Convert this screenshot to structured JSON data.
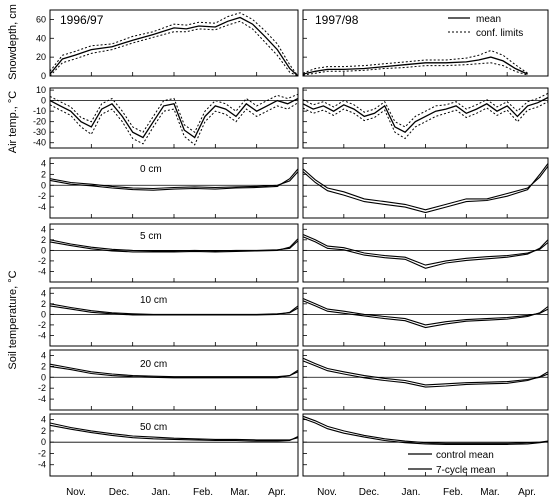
{
  "figure": {
    "season_labels": [
      "1996/97",
      "1997/98"
    ],
    "ylabels": {
      "snow": "Snowdepth, cm",
      "air": "Air temp., °C",
      "soil": "Soil temperature, °C"
    },
    "month_labels": [
      "Nov.",
      "Dec.",
      "Jan.",
      "Feb.",
      "Mar.",
      "Apr."
    ],
    "depth_labels": [
      "0 cm",
      "5 cm",
      "10 cm",
      "20 cm",
      "50 cm"
    ],
    "legend_top": [
      "mean",
      "conf. limits"
    ],
    "legend_bottom": [
      "control mean",
      "7-cycle mean"
    ]
  },
  "chart_data": [
    {
      "type": "line",
      "panel": "snow-depth",
      "ylabel": "Snowdepth, cm",
      "ylim": [
        0,
        70
      ],
      "yticks": [
        0,
        20,
        40,
        60
      ],
      "x_months": [
        "Nov.",
        "Dec.",
        "Jan.",
        "Feb.",
        "Mar.",
        "Apr."
      ],
      "seasons": [
        {
          "label": "1996/97",
          "x": [
            0,
            0.3,
            0.6,
            1,
            1.5,
            2,
            2.5,
            3,
            3.3,
            3.6,
            4,
            4.3,
            4.6,
            4.9,
            5.2,
            5.5,
            5.8,
            6.0
          ],
          "mean": [
            2,
            18,
            22,
            28,
            31,
            38,
            44,
            51,
            50,
            53,
            52,
            58,
            62,
            55,
            42,
            28,
            8,
            0
          ],
          "upper": [
            5,
            22,
            26,
            32,
            34,
            42,
            47,
            55,
            54,
            57,
            56,
            63,
            67,
            60,
            48,
            34,
            12,
            0
          ],
          "lower": [
            0,
            14,
            18,
            24,
            28,
            35,
            41,
            47,
            47,
            50,
            49,
            54,
            58,
            50,
            36,
            22,
            4,
            0
          ]
        },
        {
          "label": "1997/98",
          "x": [
            0,
            0.3,
            0.6,
            1,
            1.5,
            2,
            2.5,
            3,
            3.5,
            4,
            4.3,
            4.6,
            4.9,
            5.2,
            5.5
          ],
          "mean": [
            2,
            5,
            7,
            7,
            8,
            10,
            12,
            14,
            14,
            15,
            17,
            20,
            16,
            8,
            2
          ],
          "upper": [
            3,
            8,
            10,
            10,
            11,
            13,
            15,
            17,
            17,
            19,
            22,
            27,
            22,
            12,
            3
          ],
          "lower": [
            1,
            3,
            5,
            5,
            6,
            8,
            9,
            11,
            11,
            12,
            13,
            14,
            11,
            5,
            1
          ]
        }
      ]
    },
    {
      "type": "line",
      "panel": "air-temp",
      "ylabel": "Air temp., °C",
      "ylim": [
        -45,
        12
      ],
      "yticks": [
        10,
        0,
        -10,
        -20,
        -30,
        -40
      ],
      "seasons": [
        {
          "label": "1996/97",
          "x": [
            0,
            0.25,
            0.5,
            0.75,
            1,
            1.25,
            1.5,
            1.75,
            2,
            2.25,
            2.5,
            2.75,
            3,
            3.25,
            3.5,
            3.75,
            4,
            4.25,
            4.5,
            4.75,
            5,
            5.25,
            5.5,
            5.75,
            6.0
          ],
          "mean": [
            0,
            -5,
            -10,
            -20,
            -25,
            -8,
            -3,
            -15,
            -30,
            -35,
            -20,
            -5,
            -3,
            -28,
            -35,
            -15,
            -5,
            -8,
            -15,
            -3,
            -10,
            -5,
            0,
            -3,
            2
          ],
          "upper": [
            4,
            -1,
            -6,
            -16,
            -20,
            -3,
            2,
            -10,
            -25,
            -30,
            -15,
            0,
            2,
            -23,
            -30,
            -10,
            0,
            -3,
            -10,
            2,
            -5,
            0,
            5,
            2,
            6
          ],
          "lower": [
            -4,
            -9,
            -14,
            -25,
            -32,
            -13,
            -8,
            -20,
            -36,
            -41,
            -25,
            -10,
            -8,
            -34,
            -42,
            -20,
            -10,
            -13,
            -20,
            -8,
            -15,
            -10,
            -5,
            -8,
            -2
          ]
        },
        {
          "label": "1997/98",
          "x": [
            0,
            0.25,
            0.5,
            0.75,
            1,
            1.25,
            1.5,
            1.75,
            2,
            2.25,
            2.5,
            2.75,
            3,
            3.25,
            3.5,
            3.75,
            4,
            4.25,
            4.5,
            4.75,
            5,
            5.25,
            5.5,
            5.75,
            6.0
          ],
          "mean": [
            -3,
            -8,
            -5,
            -10,
            -4,
            -8,
            -15,
            -12,
            -5,
            -25,
            -30,
            -20,
            -15,
            -10,
            -8,
            -5,
            -12,
            -8,
            -3,
            -10,
            -5,
            -15,
            -5,
            -2,
            3
          ],
          "upper": [
            1,
            -4,
            -1,
            -6,
            0,
            -4,
            -11,
            -8,
            -1,
            -20,
            -25,
            -15,
            -10,
            -5,
            -4,
            -1,
            -8,
            -4,
            1,
            -6,
            -1,
            -10,
            -1,
            2,
            7
          ],
          "lower": [
            -7,
            -12,
            -9,
            -14,
            -8,
            -12,
            -19,
            -16,
            -9,
            -30,
            -36,
            -25,
            -20,
            -15,
            -12,
            -9,
            -16,
            -12,
            -7,
            -14,
            -9,
            -20,
            -9,
            -6,
            -1
          ]
        }
      ]
    },
    {
      "type": "line",
      "panel": "soil-0cm",
      "label": "0 cm",
      "ylim": [
        -6,
        5
      ],
      "yticks": [
        4,
        2,
        0,
        -2,
        -4
      ],
      "seasons": [
        {
          "label": "1996/97",
          "x": [
            0,
            0.5,
            1,
            1.5,
            2,
            2.5,
            3,
            3.5,
            4,
            4.5,
            5,
            5.5,
            5.8,
            6.0
          ],
          "control": [
            1.2,
            0.5,
            0.2,
            -0.2,
            -0.5,
            -0.6,
            -0.4,
            -0.3,
            -0.4,
            -0.3,
            -0.2,
            0,
            0.8,
            2.5
          ],
          "cycle": [
            0.9,
            0.2,
            -0.1,
            -0.5,
            -0.8,
            -0.9,
            -0.7,
            -0.6,
            -0.7,
            -0.5,
            -0.4,
            -0.2,
            1.2,
            3.0
          ]
        },
        {
          "label": "1997/98",
          "x": [
            0,
            0.3,
            0.6,
            1,
            1.5,
            2,
            2.5,
            3,
            3.5,
            4,
            4.5,
            5,
            5.5,
            5.8,
            6.0
          ],
          "control": [
            3,
            1,
            -0.5,
            -1.2,
            -2.5,
            -3,
            -3.5,
            -4.5,
            -3.5,
            -2.5,
            -2.5,
            -1.5,
            -0.5,
            1.5,
            3.5
          ],
          "cycle": [
            2.5,
            0.5,
            -1,
            -1.8,
            -3,
            -3.5,
            -4,
            -5,
            -4,
            -3,
            -2.8,
            -2,
            -0.8,
            2,
            4
          ]
        }
      ]
    },
    {
      "type": "line",
      "panel": "soil-5cm",
      "label": "5 cm",
      "ylim": [
        -6,
        5
      ],
      "yticks": [
        4,
        2,
        0,
        -2,
        -4
      ],
      "seasons": [
        {
          "label": "1996/97",
          "x": [
            0,
            0.5,
            1,
            1.5,
            2,
            2.5,
            3,
            3.5,
            4,
            4.5,
            5,
            5.5,
            5.8,
            6.0
          ],
          "control": [
            2.0,
            1.2,
            0.6,
            0.2,
            0,
            -0.1,
            -0.1,
            0,
            -0.1,
            0,
            0,
            0.1,
            0.4,
            1.8
          ],
          "cycle": [
            1.6,
            0.9,
            0.3,
            -0.1,
            -0.3,
            -0.3,
            -0.3,
            -0.2,
            -0.3,
            -0.2,
            -0.1,
            0,
            0.6,
            2.2
          ]
        },
        {
          "label": "1997/98",
          "x": [
            0,
            0.3,
            0.6,
            1,
            1.5,
            2,
            2.5,
            3,
            3.5,
            4,
            4.5,
            5,
            5.5,
            5.8,
            6.0
          ],
          "control": [
            3,
            2,
            0.8,
            0.5,
            -0.5,
            -1,
            -1.3,
            -2.8,
            -2,
            -1.5,
            -1.2,
            -1,
            -0.5,
            0.2,
            1.5
          ],
          "cycle": [
            2.6,
            1.6,
            0.4,
            0.1,
            -0.9,
            -1.4,
            -1.7,
            -3.4,
            -2.4,
            -1.9,
            -1.6,
            -1.3,
            -0.7,
            0.4,
            2
          ]
        }
      ]
    },
    {
      "type": "line",
      "panel": "soil-10cm",
      "label": "10 cm",
      "ylim": [
        -6,
        5
      ],
      "yticks": [
        4,
        2,
        0,
        -2,
        -4
      ],
      "seasons": [
        {
          "label": "1996/97",
          "x": [
            0,
            0.5,
            1,
            1.5,
            2,
            2.5,
            3,
            3.5,
            4,
            4.5,
            5,
            5.5,
            5.8,
            6.0
          ],
          "control": [
            2.0,
            1.3,
            0.7,
            0.3,
            0.1,
            0,
            0,
            0,
            0,
            0,
            0,
            0.1,
            0.3,
            1.2
          ],
          "cycle": [
            1.6,
            1.0,
            0.4,
            0.1,
            -0.1,
            -0.1,
            -0.1,
            -0.1,
            -0.1,
            -0.1,
            -0.1,
            0,
            0.4,
            1.6
          ]
        },
        {
          "label": "1997/98",
          "x": [
            0,
            0.3,
            0.6,
            1,
            1.5,
            2,
            2.5,
            3,
            3.5,
            4,
            4.5,
            5,
            5.5,
            5.8,
            6.0
          ],
          "control": [
            3,
            2,
            1,
            0.6,
            0,
            -0.4,
            -0.8,
            -2,
            -1.4,
            -1,
            -0.8,
            -0.6,
            -0.2,
            0.2,
            1
          ],
          "cycle": [
            2.6,
            1.6,
            0.6,
            0.2,
            -0.3,
            -0.8,
            -1.2,
            -2.5,
            -1.8,
            -1.3,
            -1.1,
            -0.9,
            -0.4,
            0.3,
            1.5
          ]
        }
      ]
    },
    {
      "type": "line",
      "panel": "soil-20cm",
      "label": "20 cm",
      "ylim": [
        -6,
        5
      ],
      "yticks": [
        4,
        2,
        0,
        -2,
        -4
      ],
      "seasons": [
        {
          "label": "1996/97",
          "x": [
            0,
            0.5,
            1,
            1.5,
            2,
            2.5,
            3,
            3.5,
            4,
            4.5,
            5,
            5.5,
            5.8,
            6.0
          ],
          "control": [
            2.4,
            1.7,
            1.0,
            0.6,
            0.3,
            0.2,
            0.1,
            0.1,
            0.1,
            0.1,
            0.1,
            0.1,
            0.3,
            1.0
          ],
          "cycle": [
            2.0,
            1.4,
            0.7,
            0.3,
            0.1,
            0,
            -0.1,
            -0.1,
            -0.1,
            -0.1,
            -0.1,
            -0.1,
            0.3,
            1.3
          ]
        },
        {
          "label": "1997/98",
          "x": [
            0,
            0.3,
            0.6,
            1,
            1.5,
            2,
            2.5,
            3,
            3.5,
            4,
            4.5,
            5,
            5.5,
            5.8,
            6.0
          ],
          "control": [
            3.5,
            2.5,
            1.6,
            1.0,
            0.3,
            -0.2,
            -0.6,
            -1.4,
            -1.2,
            -1,
            -0.9,
            -0.8,
            -0.4,
            0,
            0.6
          ],
          "cycle": [
            3.0,
            2.1,
            1.2,
            0.6,
            -0.1,
            -0.6,
            -1.0,
            -1.8,
            -1.6,
            -1.3,
            -1.2,
            -1.1,
            -0.6,
            0.1,
            1.0
          ]
        }
      ]
    },
    {
      "type": "line",
      "panel": "soil-50cm",
      "label": "50 cm",
      "ylim": [
        -6,
        5
      ],
      "yticks": [
        4,
        2,
        0,
        -2,
        -4
      ],
      "seasons": [
        {
          "label": "1996/97",
          "x": [
            0,
            0.5,
            1,
            1.5,
            2,
            2.5,
            3,
            3.5,
            4,
            4.5,
            5,
            5.5,
            5.8,
            6.0
          ],
          "control": [
            3.4,
            2.6,
            2.0,
            1.5,
            1.1,
            0.9,
            0.7,
            0.6,
            0.5,
            0.5,
            0.4,
            0.4,
            0.4,
            0.8
          ],
          "cycle": [
            3.0,
            2.3,
            1.7,
            1.2,
            0.8,
            0.6,
            0.5,
            0.4,
            0.3,
            0.3,
            0.2,
            0.2,
            0.3,
            1.0
          ]
        },
        {
          "label": "1997/98",
          "x": [
            0,
            0.3,
            0.6,
            1,
            1.5,
            2,
            2.5,
            3,
            3.5,
            4,
            4.5,
            5,
            5.5,
            5.8,
            6.0
          ],
          "control": [
            4.6,
            3.8,
            2.8,
            2.0,
            1.2,
            0.6,
            0.2,
            -0.1,
            -0.2,
            -0.2,
            -0.2,
            -0.2,
            -0.1,
            0,
            0.2
          ],
          "cycle": [
            4.2,
            3.4,
            2.4,
            1.6,
            0.9,
            0.3,
            -0.1,
            -0.3,
            -0.4,
            -0.4,
            -0.4,
            -0.4,
            -0.3,
            -0.1,
            0.1
          ]
        }
      ]
    }
  ]
}
